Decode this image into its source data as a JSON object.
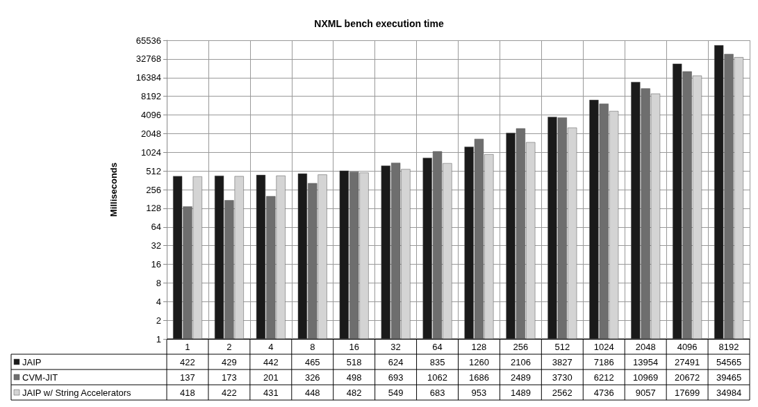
{
  "chart_data": {
    "type": "bar",
    "title": "NXML bench execution time",
    "ylabel": "Milliseconds",
    "categories": [
      "1",
      "2",
      "4",
      "8",
      "16",
      "32",
      "64",
      "128",
      "256",
      "512",
      "1024",
      "2048",
      "4096",
      "8192"
    ],
    "series": [
      {
        "name": "JAIP",
        "color": "#1a1a1a",
        "values": [
          422,
          429,
          442,
          465,
          518,
          624,
          835,
          1260,
          2106,
          3827,
          7186,
          13954,
          27491,
          54565
        ]
      },
      {
        "name": "CVM-JIT",
        "color": "#6e6e6e",
        "values": [
          137,
          173,
          201,
          326,
          498,
          693,
          1062,
          1686,
          2489,
          3730,
          6212,
          10969,
          20672,
          39465
        ]
      },
      {
        "name": "JAIP w/ String Accelerators",
        "color": "#d4d4d4",
        "values": [
          418,
          422,
          431,
          448,
          482,
          549,
          683,
          953,
          1489,
          2562,
          4736,
          9057,
          17699,
          34984
        ]
      }
    ],
    "log": "y",
    "ylim": [
      1,
      65536
    ],
    "yticks": [
      1,
      2,
      4,
      8,
      16,
      32,
      64,
      128,
      256,
      512,
      1024,
      2048,
      4096,
      8192,
      16384,
      32768,
      65536
    ],
    "grid": true,
    "legend": "bottom",
    "data_labels": true
  }
}
